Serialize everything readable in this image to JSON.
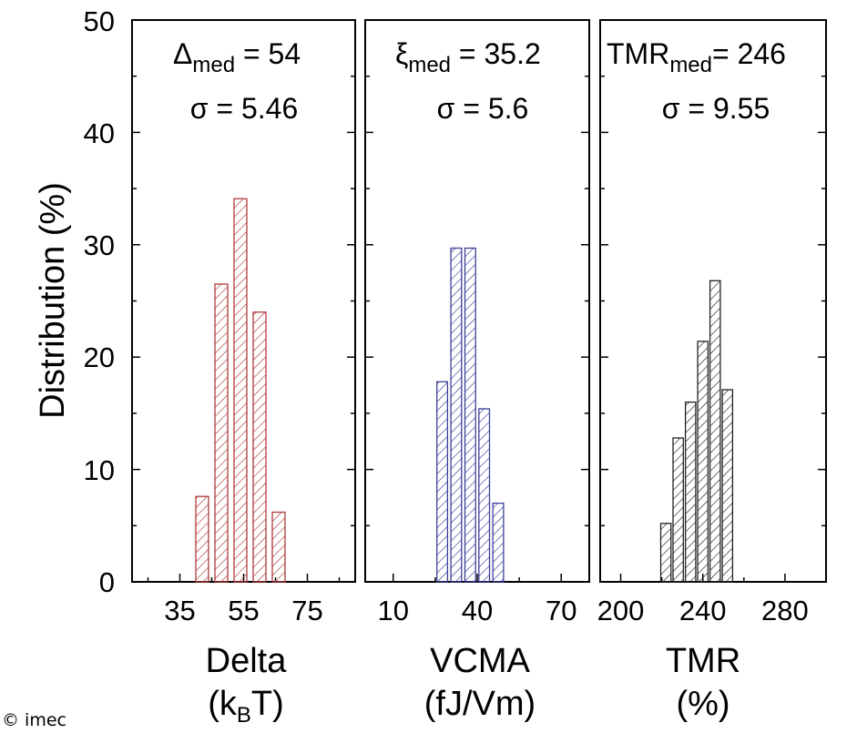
{
  "copyright": "© imec",
  "y_axis": {
    "label": "Distribution (%)"
  },
  "colors": {
    "delta": "#b03a3a",
    "vcma": "#3a3f95",
    "tmr": "#222222",
    "axis": "#000000"
  },
  "chart_data": [
    {
      "type": "bar",
      "name": "delta-panel",
      "bin_centers": [
        42,
        48,
        54,
        60,
        66
      ],
      "bin_width": 4,
      "values": [
        7.6,
        26.5,
        34.1,
        24.0,
        6.2
      ],
      "xlim": [
        20,
        90
      ],
      "ylim": [
        0,
        50
      ],
      "xticks": [
        35,
        55,
        75
      ],
      "xtick_labels": [
        "35",
        "55",
        "75"
      ],
      "yticks": [
        0,
        10,
        20,
        30,
        40,
        50
      ],
      "ytick_labels": [
        "0",
        "10",
        "20",
        "30",
        "40",
        "50"
      ],
      "xlabel": "Delta",
      "unit_main": "k",
      "unit_sub": "B",
      "unit_tail": "T",
      "annotation": {
        "symbol": "Δ",
        "sub": "med",
        "eq": " = 54",
        "sigma": "σ = 5.46"
      }
    },
    {
      "type": "bar",
      "name": "vcma-panel",
      "bin_centers": [
        27.5,
        32.5,
        37.5,
        42.5,
        47.5
      ],
      "bin_width": 3.8,
      "values": [
        17.8,
        29.7,
        29.7,
        15.4,
        7.0
      ],
      "xlim": [
        0,
        80
      ],
      "ylim": [
        0,
        50
      ],
      "xticks": [
        10,
        40,
        70
      ],
      "xtick_labels": [
        "10",
        "40",
        "70"
      ],
      "xlabel": "VCMA",
      "unit": "(fJ/Vm)",
      "annotation": {
        "symbol": "ξ",
        "sub": "med",
        "eq": " = 35.2",
        "sigma": "σ = 5.6"
      }
    },
    {
      "type": "bar",
      "name": "tmr-panel",
      "bin_centers": [
        222,
        228,
        234,
        240,
        246,
        252,
        258
      ],
      "bin_width": 5,
      "values": [
        5.2,
        12.8,
        16.0,
        21.4,
        26.8,
        17.1,
        0
      ],
      "xlim": [
        190,
        300
      ],
      "ylim": [
        0,
        50
      ],
      "xticks": [
        200,
        240,
        280
      ],
      "xtick_labels": [
        "200",
        "240",
        "280"
      ],
      "xlabel": "TMR",
      "unit": "(%)",
      "annotation": {
        "symbol": "TMR",
        "sub": "med",
        "eq": "= 246",
        "sigma": "σ = 9.55"
      }
    }
  ]
}
